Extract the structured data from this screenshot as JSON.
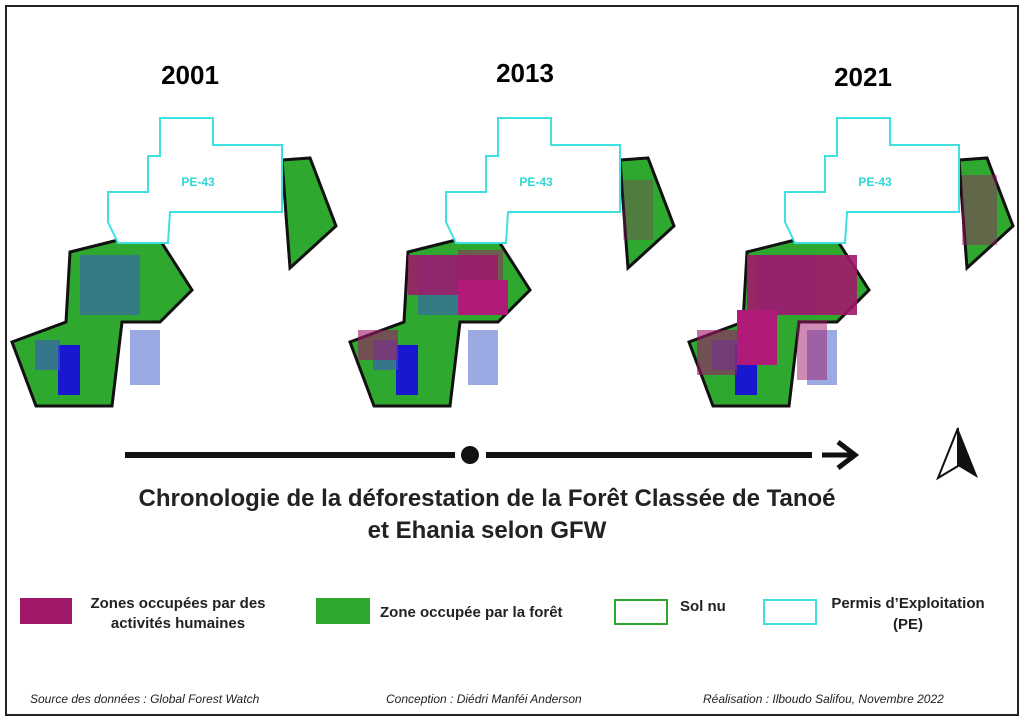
{
  "panels": [
    {
      "year": "2001",
      "permit_label": "PE-43"
    },
    {
      "year": "2013",
      "permit_label": "PE-43"
    },
    {
      "year": "2021",
      "permit_label": "PE-43"
    }
  ],
  "title": {
    "lines": [
      "Chronologie de la déforestation de la Forêt Classée de Tanoé",
      "et Ehania selon GFW"
    ]
  },
  "legend": [
    {
      "lines": [
        "Zones occupées par des",
        "activités humaines"
      ]
    },
    {
      "lines": [
        "Zone occupée par la forêt"
      ]
    },
    {
      "lines": [
        "Sol nu"
      ]
    },
    {
      "lines": [
        "Permis d’Exploitation",
        "(PE)"
      ]
    }
  ],
  "footer": {
    "source": "Source des données : Global Forest Watch",
    "conception": "Conception : Diédri Manféi Anderson",
    "realisation": "Réalisation : Ilboudo Salifou, Novembre 2022"
  }
}
